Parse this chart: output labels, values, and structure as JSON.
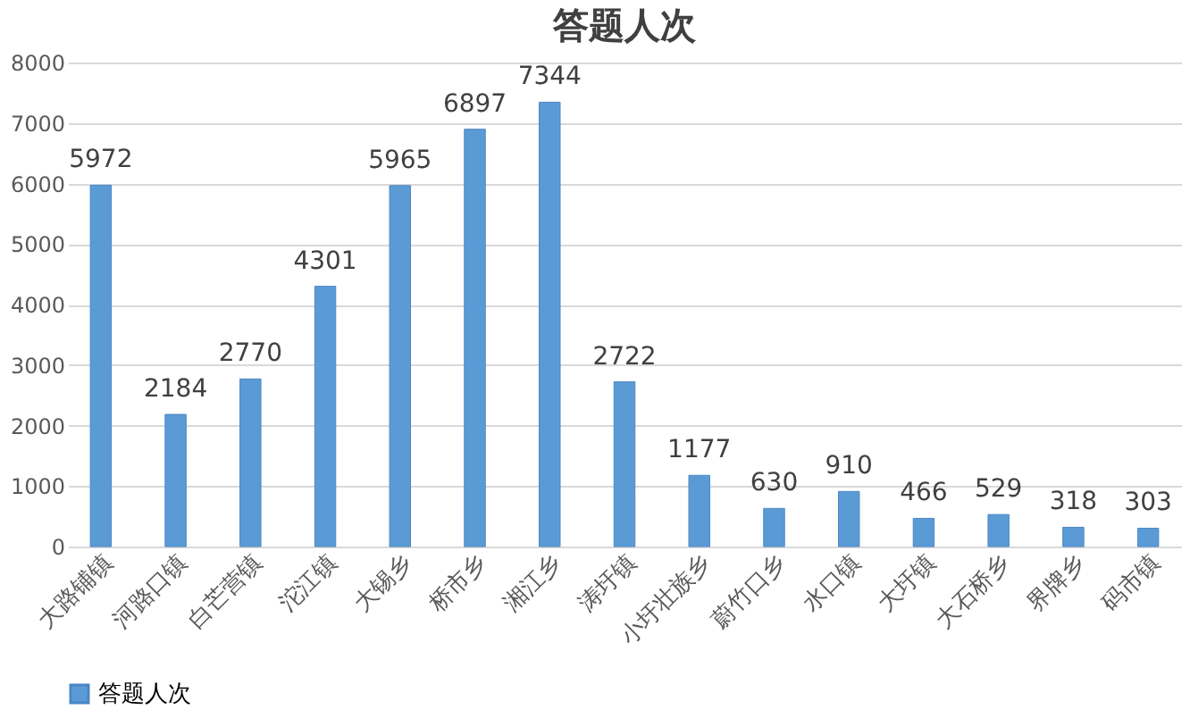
{
  "chart_data": {
    "type": "bar",
    "title": "答题人次",
    "categories": [
      "大路铺镇",
      "河路口镇",
      "白芒营镇",
      "沱江镇",
      "大锡乡",
      "桥市乡",
      "湘江乡",
      "涛圩镇",
      "小圩壮族乡",
      "蔚竹口乡",
      "水口镇",
      "大圩镇",
      "大石桥乡",
      "界牌乡",
      "码市镇"
    ],
    "series": [
      {
        "name": "答题人次",
        "color": "#5b9bd5",
        "values": [
          5972,
          2184,
          2770,
          4301,
          5965,
          6897,
          7344,
          2722,
          1177,
          630,
          910,
          466,
          529,
          318,
          303
        ]
      }
    ],
    "ylim": [
      0,
      8000
    ],
    "yticks": [
      0,
      1000,
      2000,
      3000,
      4000,
      5000,
      6000,
      7000,
      8000
    ],
    "grid": "y",
    "legend": "bottom",
    "data_labels": true
  }
}
